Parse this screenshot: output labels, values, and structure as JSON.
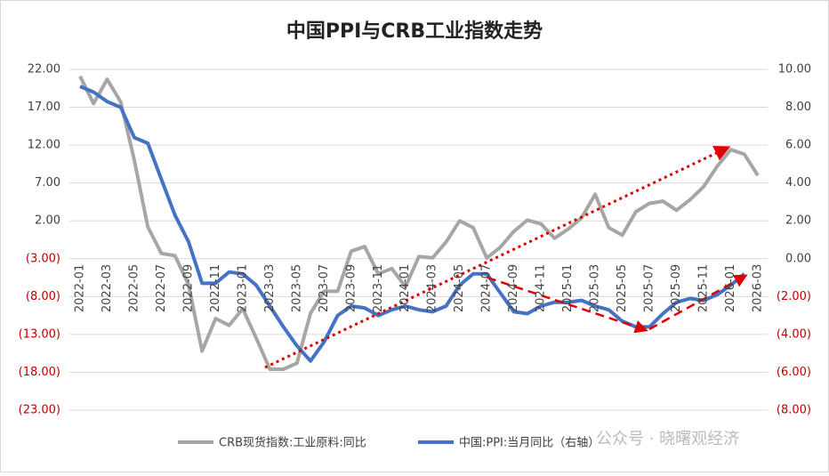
{
  "chart_data": {
    "type": "line",
    "title": "中国PPI与CRB工业指数走势",
    "categories": [
      "2022-01",
      null,
      "2022-03",
      null,
      "2022-05",
      null,
      "2022-07",
      null,
      "2022-09",
      null,
      "2022-11",
      null,
      "2023-01",
      null,
      "2023-03",
      null,
      "2023-05",
      null,
      "2023-07",
      null,
      "2023-09",
      null,
      "2023-11",
      null,
      "2024-01",
      null,
      "2024-03",
      null,
      "2024-05",
      null,
      "2024-07",
      null,
      "2024-09",
      null,
      "2024-11",
      null,
      "2025-01",
      null,
      "2025-03",
      null,
      "2025-05",
      null,
      "2025-07",
      null,
      "2025-09",
      null,
      "2025-11",
      null,
      "2026-01",
      null,
      "2026-03"
    ],
    "series": [
      {
        "name": "CRB现货指数:工业原料:同比",
        "color": "#a6a6a6",
        "values": [
          21.1,
          17.5,
          20.7,
          17.7,
          10,
          1.2,
          -2.3,
          -2.6,
          -6.4,
          -15.2,
          -10.9,
          -11.8,
          -9.6,
          -13.5,
          -17.6,
          -17.6,
          -16.8,
          -10.2,
          -7.3,
          -7.3,
          -2,
          -1.4,
          -5,
          -4.3,
          -6.7,
          -2.7,
          -2.9,
          -0.8,
          2,
          1.1,
          -2.9,
          -1.5,
          0.6,
          2.1,
          1.6,
          -0.3,
          0.9,
          2.4,
          5.5,
          1.1,
          0.1,
          3.2,
          4.3,
          4.6,
          3.4,
          4.8,
          6.5,
          9.2,
          11.4,
          10.8,
          8
        ]
      },
      {
        "name": "中国:PPI:当月同比（右轴）",
        "color": "#4472c4",
        "axis": "y2",
        "values": [
          9.1,
          8.8,
          8.3,
          8.0,
          6.4,
          6.1,
          4.2,
          2.3,
          0.9,
          -1.3,
          -1.3,
          -0.7,
          -0.8,
          -1.4,
          -2.5,
          -3.6,
          -4.6,
          -5.4,
          -4.4,
          -3.0,
          -2.5,
          -2.6,
          -3.0,
          -2.7,
          -2.5,
          -2.7,
          -2.8,
          -2.5,
          -1.4,
          -0.8,
          -0.8,
          -1.8,
          -2.8,
          -2.9,
          -2.5,
          -2.3,
          -2.3,
          -2.2,
          -2.5,
          -2.7,
          -3.3,
          -3.6,
          -3.6,
          -2.9,
          -2.3,
          -2.1,
          -2.2,
          -1.9,
          -1.4,
          -0.8,
          null
        ]
      }
    ],
    "ylim": [
      -23,
      22
    ],
    "yticks": [
      {
        "value": 22,
        "label": "22.00"
      },
      {
        "value": 17,
        "label": "17.00"
      },
      {
        "value": 12,
        "label": "12.00"
      },
      {
        "value": 7,
        "label": "7.00"
      },
      {
        "value": 2,
        "label": "2.00"
      },
      {
        "value": -3,
        "label": "(3.00)"
      },
      {
        "value": -8,
        "label": "(8.00)"
      },
      {
        "value": -13,
        "label": "(13.00)"
      },
      {
        "value": -18,
        "label": "(18.00)"
      },
      {
        "value": -23,
        "label": "(23.00)"
      }
    ],
    "y2lim": [
      -8,
      10
    ],
    "y2ticks": [
      {
        "value": 10,
        "label": "10.00"
      },
      {
        "value": 8,
        "label": "8.00"
      },
      {
        "value": 6,
        "label": "6.00"
      },
      {
        "value": 4,
        "label": "4.00"
      },
      {
        "value": 2,
        "label": "2.00"
      },
      {
        "value": 0,
        "label": "0.00"
      },
      {
        "value": -2,
        "label": "(2.00)"
      },
      {
        "value": -4,
        "label": "(4.00)"
      },
      {
        "value": -6,
        "label": "(6.00)"
      },
      {
        "value": -8,
        "label": "(8.00)"
      }
    ],
    "negative_color": "#c00000",
    "grid": true,
    "legend": "bottom",
    "watermark": "公众号 · 晓曙观经济"
  }
}
